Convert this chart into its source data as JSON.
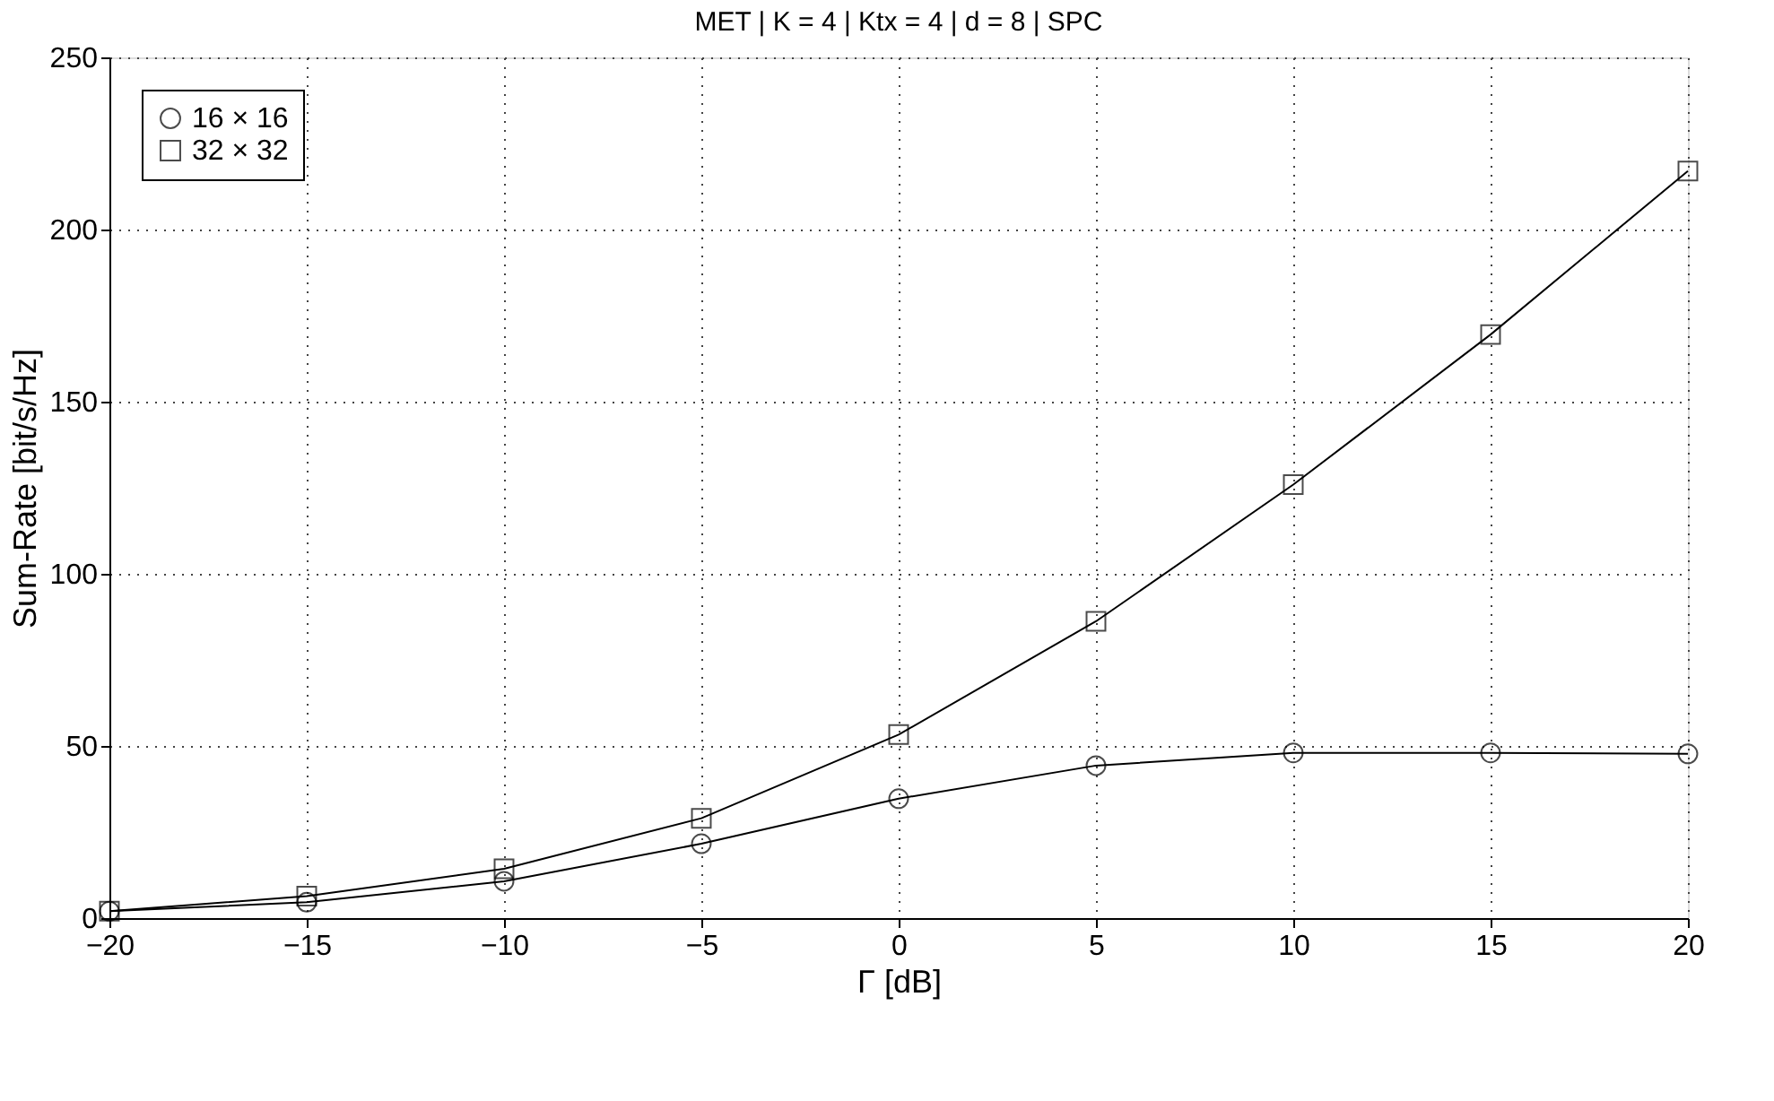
{
  "chart_data": {
    "type": "line",
    "title": "MET | K = 4  |  Ktx = 4  |  d = 8  |  SPC",
    "xlabel": "Γ [dB]",
    "ylabel": "Sum-Rate [bit/s/Hz]",
    "x": [
      -20,
      -15,
      -10,
      -5,
      0,
      5,
      10,
      15,
      20
    ],
    "series": [
      {
        "name": "16 × 16",
        "color": "#000000",
        "marker": "circle",
        "values": [
          2,
          4.6,
          10.7,
          21.6,
          34.7,
          44.3,
          48,
          48,
          47.7
        ]
      },
      {
        "name": "32 × 32",
        "color": "#000000",
        "marker": "square",
        "values": [
          2,
          6.4,
          14.3,
          29,
          53.3,
          86.2,
          125.9,
          169.5,
          217
        ]
      }
    ],
    "xlim": [
      -20,
      20
    ],
    "ylim": [
      0,
      250
    ],
    "xticks": [
      -20,
      -15,
      -10,
      -5,
      0,
      5,
      10,
      15,
      20
    ],
    "yticks": [
      0,
      50,
      100,
      150,
      200,
      250
    ],
    "grid": true,
    "legend": "top left",
    "line_style": "solid"
  }
}
